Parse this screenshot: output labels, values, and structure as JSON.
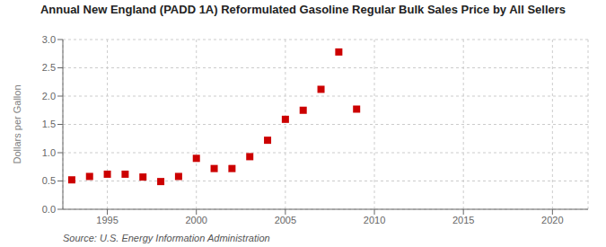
{
  "chart_data": {
    "type": "scatter",
    "title": "Annual New England (PADD 1A) Reformulated Gasoline Regular Bulk Sales Price by All Sellers",
    "ylabel": "Dollars per Gallon",
    "annotations": [
      "Source: U.S. Energy Information Administration"
    ],
    "x": [
      1993,
      1994,
      1995,
      1996,
      1997,
      1998,
      1999,
      2000,
      2001,
      2002,
      2003,
      2004,
      2005,
      2006,
      2007,
      2008,
      2009
    ],
    "values": [
      0.52,
      0.58,
      0.62,
      0.62,
      0.57,
      0.49,
      0.58,
      0.9,
      0.72,
      0.72,
      0.93,
      1.22,
      1.59,
      1.75,
      2.12,
      2.78,
      1.77
    ],
    "color": "#cc0000",
    "marker": "square",
    "xlim": [
      1992.5,
      2022
    ],
    "ylim": [
      0.0,
      3.0
    ],
    "xticks": [
      1995,
      2000,
      2005,
      2010,
      2015,
      2020
    ],
    "yticks": [
      {
        "value": 0.0,
        "label": "0.0"
      },
      0.5,
      {
        "value": 1.0,
        "label": "1.0"
      },
      1.5,
      {
        "value": 2.0,
        "label": "2.0"
      },
      2.5,
      {
        "value": 3.0,
        "label": "3.0"
      }
    ],
    "grid": true
  }
}
